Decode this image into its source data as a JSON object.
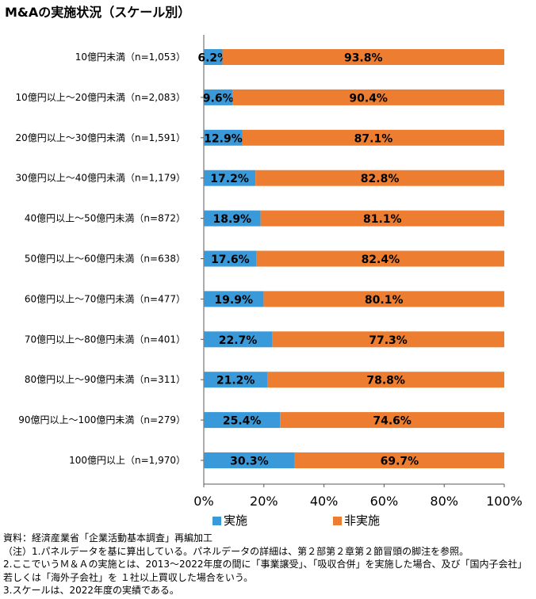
{
  "chart_data": {
    "type": "bar",
    "stacked": true,
    "orientation": "horizontal",
    "title": "M&Aの実施状況（スケール別）",
    "categories": [
      "10億円未満（n=1,053）",
      "10億円以上～20億円未満（n=2,083）",
      "20億円以上～30億円未満（n=1,591）",
      "30億円以上～40億円未満（n=1,179）",
      "40億円以上～50億円未満（n=872）",
      "50億円以上～60億円未満（n=638）",
      "60億円以上～70億円未満（n=477）",
      "70億円以上～80億円未満（n=401）",
      "80億円以上～90億円未満（n=311）",
      "90億円以上～100億円未満（n=279）",
      "100億円以上（n=1,970）"
    ],
    "series": [
      {
        "name": "実施",
        "color": "#3a9ad9",
        "values": [
          6.2,
          9.6,
          12.9,
          17.2,
          18.9,
          17.6,
          19.9,
          22.7,
          21.2,
          25.4,
          30.3
        ],
        "labels": [
          "6.2%",
          "9.6%",
          "12.9%",
          "17.2%",
          "18.9%",
          "17.6%",
          "19.9%",
          "22.7%",
          "21.2%",
          "25.4%",
          "30.3%"
        ]
      },
      {
        "name": "非実施",
        "color": "#ed7d31",
        "values": [
          93.8,
          90.4,
          87.1,
          82.8,
          81.1,
          82.4,
          80.1,
          77.3,
          78.8,
          74.6,
          69.7
        ],
        "labels": [
          "93.8%",
          "90.4%",
          "87.1%",
          "82.8%",
          "81.1%",
          "82.4%",
          "80.1%",
          "77.3%",
          "78.8%",
          "74.6%",
          "69.7%"
        ]
      }
    ],
    "xlim": [
      0,
      100
    ],
    "xticks": [
      "0%",
      "20%",
      "40%",
      "60%",
      "80%",
      "100%"
    ],
    "legend_position": "bottom",
    "grid": false
  },
  "notes": {
    "source": "資料：経済産業省「企業活動基本調査」再編加工",
    "note1": "（注）1.パネルデータを基に算出している。パネルデータの詳細は、第２部第２章第２節冒頭の脚注を参照。",
    "note2": "2.ここでいうＭ＆Ａの実施とは、2013～2022年度の間に「事業譲受」、「吸収合併」を実施した場合、及び「国内子会社」若しくは「海外子会社」を １社以上買収した場合をいう。",
    "note3": "3.スケールは、2022年度の実績である。"
  }
}
